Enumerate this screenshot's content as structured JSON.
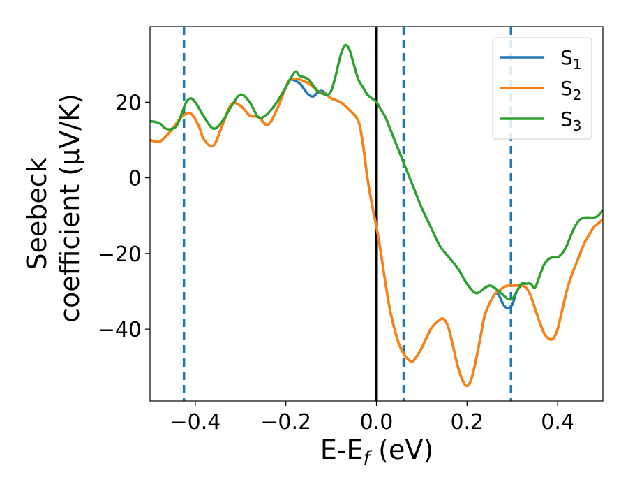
{
  "chart_data": {
    "type": "line",
    "xlabel": "E-E_f (eV)",
    "ylabel_lines": [
      "Seebeck",
      "coefficient  (μV/K)"
    ],
    "xlim": [
      -0.5,
      0.5
    ],
    "ylim": [
      -59,
      40
    ],
    "xticks": [
      -0.4,
      -0.2,
      0.0,
      0.2,
      0.4
    ],
    "xtick_labels": [
      "−0.4",
      "−0.2",
      "0.0",
      "0.2",
      "0.4"
    ],
    "yticks": [
      20,
      0,
      -20,
      -40
    ],
    "ytick_labels": [
      "20",
      "0",
      "−20",
      "−40"
    ],
    "grid": false,
    "legend_position": "top-right",
    "vlines": [
      {
        "x": -0.425,
        "style": "dashed",
        "color": "#1f77b4"
      },
      {
        "x": 0.0,
        "style": "solid",
        "color": "#000000"
      },
      {
        "x": 0.06,
        "style": "dashed",
        "color": "#1f77b4"
      },
      {
        "x": 0.297,
        "style": "dashed",
        "color": "#1f77b4"
      }
    ],
    "series": [
      {
        "name": "S1",
        "legend_base": "S",
        "legend_sub": "1",
        "color": "#1f77b4",
        "x": [
          -0.5,
          -0.48,
          -0.465,
          -0.45,
          -0.435,
          -0.42,
          -0.41,
          -0.4,
          -0.39,
          -0.38,
          -0.36,
          -0.34,
          -0.32,
          -0.3,
          -0.28,
          -0.26,
          -0.24,
          -0.22,
          -0.2,
          -0.19,
          -0.17,
          -0.16,
          -0.15,
          -0.14,
          -0.13,
          -0.12,
          -0.11,
          -0.1,
          -0.08,
          -0.06,
          -0.04,
          -0.03,
          -0.02,
          -0.01,
          0.0,
          0.01,
          0.02,
          0.03,
          0.04,
          0.05,
          0.06,
          0.07,
          0.08,
          0.09,
          0.1,
          0.12,
          0.14,
          0.15,
          0.16,
          0.17,
          0.18,
          0.19,
          0.2,
          0.21,
          0.22,
          0.23,
          0.24,
          0.26,
          0.27,
          0.28,
          0.29,
          0.3,
          0.31,
          0.32,
          0.33,
          0.34,
          0.35,
          0.36,
          0.37,
          0.38,
          0.39,
          0.4,
          0.41,
          0.42,
          0.43,
          0.44,
          0.45,
          0.46,
          0.47,
          0.48,
          0.49,
          0.5
        ],
        "values": [
          10,
          9.5,
          11,
          13,
          15.5,
          17,
          17,
          15.5,
          13,
          10,
          8.5,
          14,
          19.5,
          19,
          16.5,
          16,
          14,
          18,
          24,
          26,
          25,
          23.5,
          22,
          21.5,
          22.5,
          23,
          22,
          21,
          20,
          18,
          15,
          9,
          0,
          -7,
          -13,
          -20,
          -28,
          -35,
          -40,
          -44,
          -46.5,
          -48,
          -48.5,
          -47,
          -45,
          -40,
          -37.5,
          -37.5,
          -40,
          -45,
          -50,
          -53.5,
          -55,
          -53,
          -48,
          -42,
          -36,
          -31,
          -31,
          -33.5,
          -34.5,
          -33.5,
          -30,
          -28.5,
          -29,
          -31,
          -34.5,
          -38,
          -41,
          -42.5,
          -42.5,
          -40,
          -35,
          -30,
          -26,
          -23,
          -20,
          -17,
          -15,
          -13,
          -12,
          -11
        ]
      },
      {
        "name": "S2",
        "legend_base": "S",
        "legend_sub": "2",
        "color": "#ff7f0e",
        "x": [
          -0.5,
          -0.48,
          -0.465,
          -0.45,
          -0.435,
          -0.42,
          -0.41,
          -0.4,
          -0.39,
          -0.38,
          -0.36,
          -0.34,
          -0.32,
          -0.3,
          -0.28,
          -0.26,
          -0.24,
          -0.22,
          -0.2,
          -0.19,
          -0.17,
          -0.16,
          -0.15,
          -0.14,
          -0.13,
          -0.12,
          -0.11,
          -0.1,
          -0.08,
          -0.06,
          -0.04,
          -0.03,
          -0.02,
          -0.01,
          0.0,
          0.01,
          0.02,
          0.03,
          0.04,
          0.05,
          0.06,
          0.07,
          0.08,
          0.09,
          0.1,
          0.12,
          0.14,
          0.15,
          0.16,
          0.17,
          0.18,
          0.19,
          0.2,
          0.21,
          0.22,
          0.23,
          0.24,
          0.26,
          0.27,
          0.28,
          0.29,
          0.3,
          0.31,
          0.32,
          0.33,
          0.34,
          0.35,
          0.36,
          0.37,
          0.38,
          0.39,
          0.4,
          0.41,
          0.42,
          0.43,
          0.44,
          0.45,
          0.46,
          0.47,
          0.48,
          0.49,
          0.5
        ],
        "values": [
          10,
          9.5,
          11,
          13,
          15.5,
          17,
          17,
          15.5,
          13,
          10,
          8.5,
          14,
          19.5,
          19,
          16.5,
          16,
          14,
          18,
          24,
          26,
          26,
          25.5,
          25,
          24,
          23,
          22.5,
          22,
          21,
          20,
          18,
          15,
          9,
          0,
          -7,
          -13,
          -20,
          -28,
          -35,
          -40,
          -44,
          -46.5,
          -48,
          -48.5,
          -47,
          -45,
          -40,
          -37.5,
          -37.5,
          -40,
          -45,
          -50,
          -53.5,
          -55,
          -53,
          -48,
          -42,
          -36,
          -31,
          -30,
          -29,
          -28.5,
          -28.5,
          -28.5,
          -28.5,
          -29,
          -31,
          -34.5,
          -38,
          -41,
          -42.5,
          -42.5,
          -40,
          -35,
          -30,
          -26,
          -23,
          -20,
          -17,
          -15,
          -13,
          -12,
          -11
        ]
      },
      {
        "name": "S3",
        "legend_base": "S",
        "legend_sub": "3",
        "color": "#2ca02c",
        "x": [
          -0.5,
          -0.48,
          -0.465,
          -0.45,
          -0.44,
          -0.43,
          -0.42,
          -0.41,
          -0.4,
          -0.39,
          -0.38,
          -0.36,
          -0.34,
          -0.32,
          -0.3,
          -0.28,
          -0.26,
          -0.24,
          -0.22,
          -0.2,
          -0.18,
          -0.17,
          -0.15,
          -0.13,
          -0.11,
          -0.1,
          -0.09,
          -0.08,
          -0.07,
          -0.06,
          -0.05,
          -0.04,
          -0.03,
          -0.02,
          -0.01,
          0.0,
          0.01,
          0.02,
          0.03,
          0.04,
          0.05,
          0.06,
          0.07,
          0.08,
          0.09,
          0.1,
          0.12,
          0.14,
          0.16,
          0.18,
          0.2,
          0.22,
          0.24,
          0.25,
          0.26,
          0.27,
          0.28,
          0.29,
          0.3,
          0.31,
          0.32,
          0.33,
          0.34,
          0.35,
          0.36,
          0.37,
          0.38,
          0.39,
          0.4,
          0.41,
          0.42,
          0.43,
          0.44,
          0.45,
          0.46,
          0.47,
          0.48,
          0.49,
          0.5
        ],
        "values": [
          15,
          14.5,
          13,
          13,
          14,
          17,
          20,
          21,
          20,
          18,
          16,
          13,
          15,
          19,
          22,
          20,
          16,
          17,
          20,
          24,
          28,
          27,
          26,
          23,
          22,
          23,
          27,
          32,
          35,
          34,
          30,
          26,
          24,
          22,
          21,
          20,
          18,
          16,
          13,
          10,
          7,
          4,
          1,
          -2,
          -5,
          -8,
          -13,
          -18,
          -21,
          -24,
          -28,
          -30.5,
          -29,
          -28.5,
          -29,
          -30,
          -31,
          -32,
          -32,
          -30,
          -28,
          -28,
          -28,
          -29,
          -26,
          -23,
          -21.5,
          -21,
          -21,
          -20,
          -18,
          -15,
          -12.5,
          -11,
          -10.5,
          -10.5,
          -10.5,
          -10,
          -8.5
        ]
      }
    ]
  }
}
